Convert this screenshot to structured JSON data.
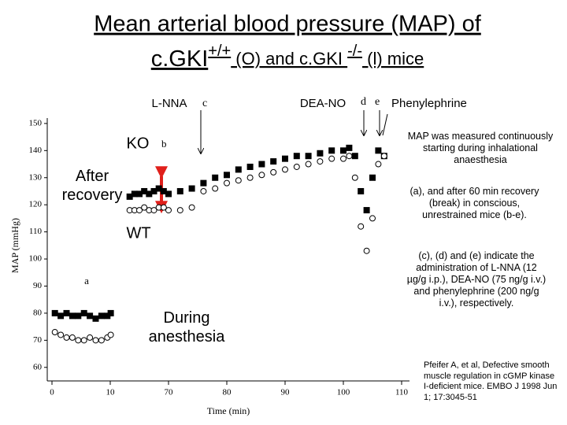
{
  "slide_title": {
    "line1": "Mean arterial blood pressure (MAP) of",
    "line2": [
      "c.GKI",
      "+/+",
      " (O) and c.GKI ",
      "-/-",
      " (l) mice"
    ]
  },
  "chart_data": {
    "type": "scatter",
    "x_label": "Time (min)",
    "y_label": "MAP (mmHg)",
    "xlim": [
      -1,
      111
    ],
    "xticks": [
      0,
      10,
      70,
      80,
      90,
      100,
      110
    ],
    "ylim": [
      55,
      152
    ],
    "yticks": [
      60,
      70,
      80,
      90,
      100,
      110,
      120,
      130,
      140,
      150
    ],
    "series": [
      {
        "name": "KO",
        "color": "#000000",
        "marker": "square",
        "x": [
          0.5,
          1.5,
          2.5,
          3.5,
          4.5,
          5.5,
          6.5,
          7.5,
          8.5,
          9.5,
          10.5,
          30,
          35,
          40,
          45,
          50,
          55,
          60,
          65,
          70,
          72,
          74,
          76,
          78,
          80,
          82,
          84,
          86,
          88,
          90,
          92,
          94,
          96,
          98,
          100,
          101,
          102,
          103,
          104,
          105,
          106,
          107
        ],
        "values": [
          80,
          79,
          80,
          79,
          79,
          80,
          79,
          78,
          79,
          79,
          80,
          123,
          124,
          124,
          125,
          124,
          125,
          126,
          125,
          124,
          125,
          126,
          128,
          130,
          131,
          133,
          134,
          135,
          136,
          137,
          138,
          138,
          139,
          140,
          140,
          141,
          138,
          125,
          118,
          130,
          140,
          138
        ]
      },
      {
        "name": "WT",
        "color": "#000000",
        "marker": "circle",
        "x": [
          0.5,
          1.5,
          2.5,
          3.5,
          4.5,
          5.5,
          6.5,
          7.5,
          8.5,
          9.5,
          10.5,
          30,
          35,
          40,
          45,
          50,
          55,
          60,
          65,
          70,
          72,
          74,
          76,
          78,
          80,
          82,
          84,
          86,
          88,
          90,
          92,
          94,
          96,
          98,
          100,
          101,
          102,
          103,
          104,
          105,
          106,
          107
        ],
        "values": [
          73,
          72,
          71,
          71,
          70,
          70,
          71,
          70,
          70,
          71,
          72,
          118,
          118,
          118,
          119,
          118,
          118,
          119,
          119,
          118,
          118,
          119,
          125,
          126,
          128,
          129,
          130,
          131,
          132,
          133,
          134,
          135,
          136,
          137,
          137,
          138,
          130,
          112,
          103,
          115,
          135,
          138
        ]
      }
    ],
    "annotations": {
      "l_nna": "L-NNA",
      "c": "c",
      "dea_no": "DEA-NO",
      "d": "d",
      "e": "e",
      "phenylephrine": "Phenylephrine",
      "ko": "KO",
      "b": "b",
      "after_recovery": "After recovery",
      "wt": "WT",
      "a": "a",
      "during_anesthesia": "During anesthesia"
    }
  },
  "notes": [
    "MAP was measured continuously starting during inhalational anaesthesia",
    "(a), and after 60 min recovery (break) in conscious, unrestrained mice (b-e).",
    "(c), (d) and (e) indicate the administration of L-NNA (12 µg/g i.p.), DEA-NO (75 ng/g i.v.) and phenylephrine (200 ng/g i.v.), respectively."
  ],
  "citation": "Pfeifer A, et al, Defective smooth muscle regulation in cGMP kinase I-deficient mice. EMBO J 1998  Jun 1; 17:3045-51"
}
